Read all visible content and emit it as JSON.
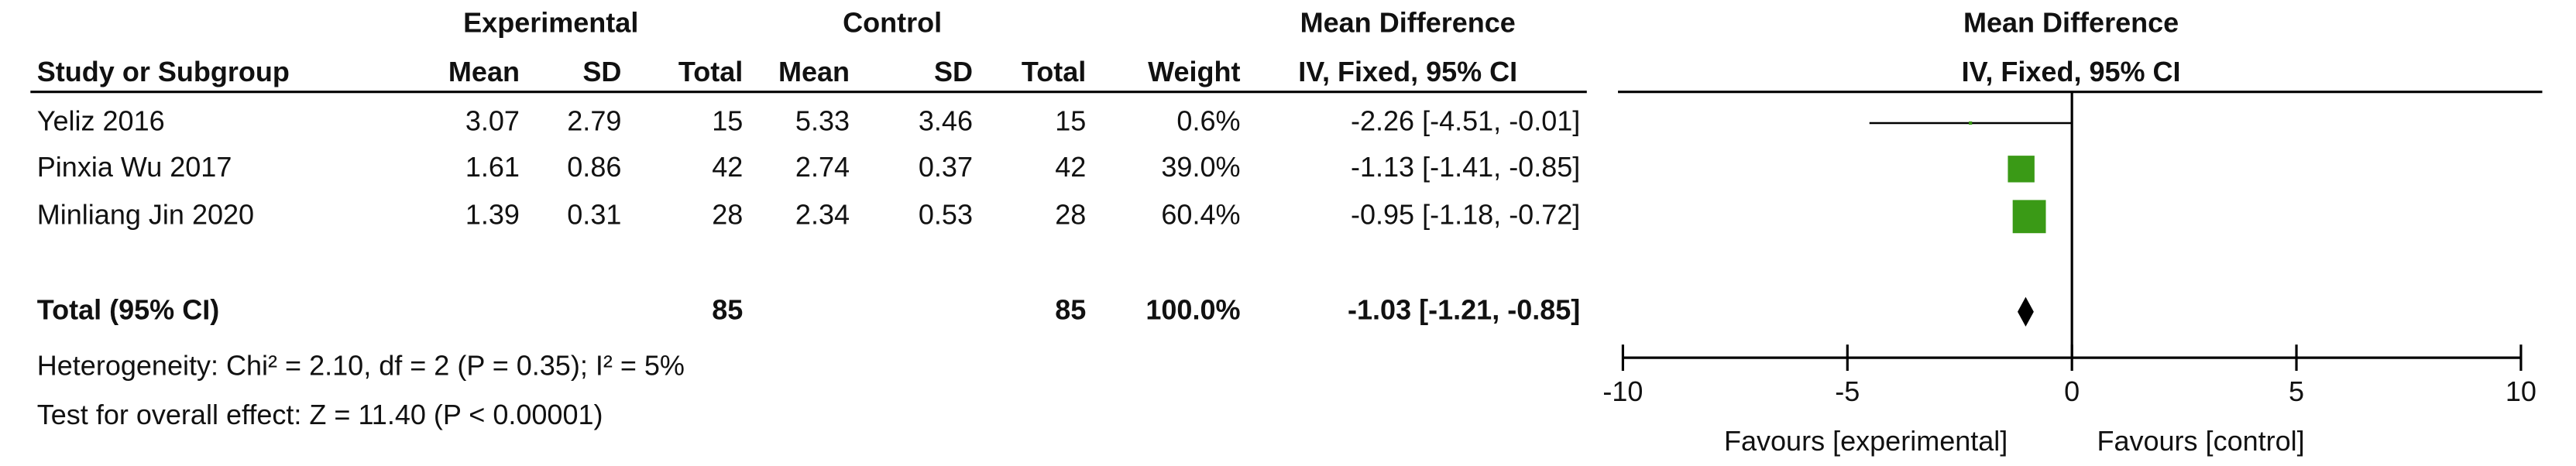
{
  "chart_data": {
    "type": "forest",
    "group_headers": [
      "Experimental",
      "Control",
      "Mean Difference",
      "Mean Difference"
    ],
    "columns": [
      "Study or Subgroup",
      "Mean",
      "SD",
      "Total",
      "Mean",
      "SD",
      "Total",
      "Weight",
      "IV, Fixed, 95% CI",
      "IV, Fixed, 95% CI"
    ],
    "studies": [
      {
        "name": "Yeliz 2016",
        "exp_mean": 3.07,
        "exp_sd": 2.79,
        "exp_total": 15,
        "ctl_mean": 5.33,
        "ctl_sd": 3.46,
        "ctl_total": 15,
        "weight": 0.6,
        "weight_label": "0.6%",
        "md": -2.26,
        "ci_low": -4.51,
        "ci_high": -0.01,
        "ci_label": "-2.26 [-4.51, -0.01]"
      },
      {
        "name": "Pinxia Wu 2017",
        "exp_mean": 1.61,
        "exp_sd": 0.86,
        "exp_total": 42,
        "ctl_mean": 2.74,
        "ctl_sd": 0.37,
        "ctl_total": 42,
        "weight": 39.0,
        "weight_label": "39.0%",
        "md": -1.13,
        "ci_low": -1.41,
        "ci_high": -0.85,
        "ci_label": "-1.13 [-1.41, -0.85]"
      },
      {
        "name": "Minliang Jin 2020",
        "exp_mean": 1.39,
        "exp_sd": 0.31,
        "exp_total": 28,
        "ctl_mean": 2.34,
        "ctl_sd": 0.53,
        "ctl_total": 28,
        "weight": 60.4,
        "weight_label": "60.4%",
        "md": -0.95,
        "ci_low": -1.18,
        "ci_high": -0.72,
        "ci_label": "-0.95 [-1.18, -0.72]"
      }
    ],
    "total": {
      "name": "Total (95% CI)",
      "exp_total": 85,
      "ctl_total": 85,
      "weight": 100.0,
      "weight_label": "100.0%",
      "md": -1.03,
      "ci_low": -1.21,
      "ci_high": -0.85,
      "ci_label": "-1.03 [-1.21, -0.85]"
    },
    "heterogeneity": "Heterogeneity: Chi² = 2.10, df = 2 (P = 0.35); I² = 5%",
    "overall_effect": "Test for overall effect: Z = 11.40 (P < 0.00001)",
    "xlim": [
      -10,
      10
    ],
    "xticks": [
      -10,
      -5,
      0,
      5,
      10
    ],
    "favours_left": "Favours [experimental]",
    "favours_right": "Favours [control]",
    "color": "#3a9a16"
  }
}
